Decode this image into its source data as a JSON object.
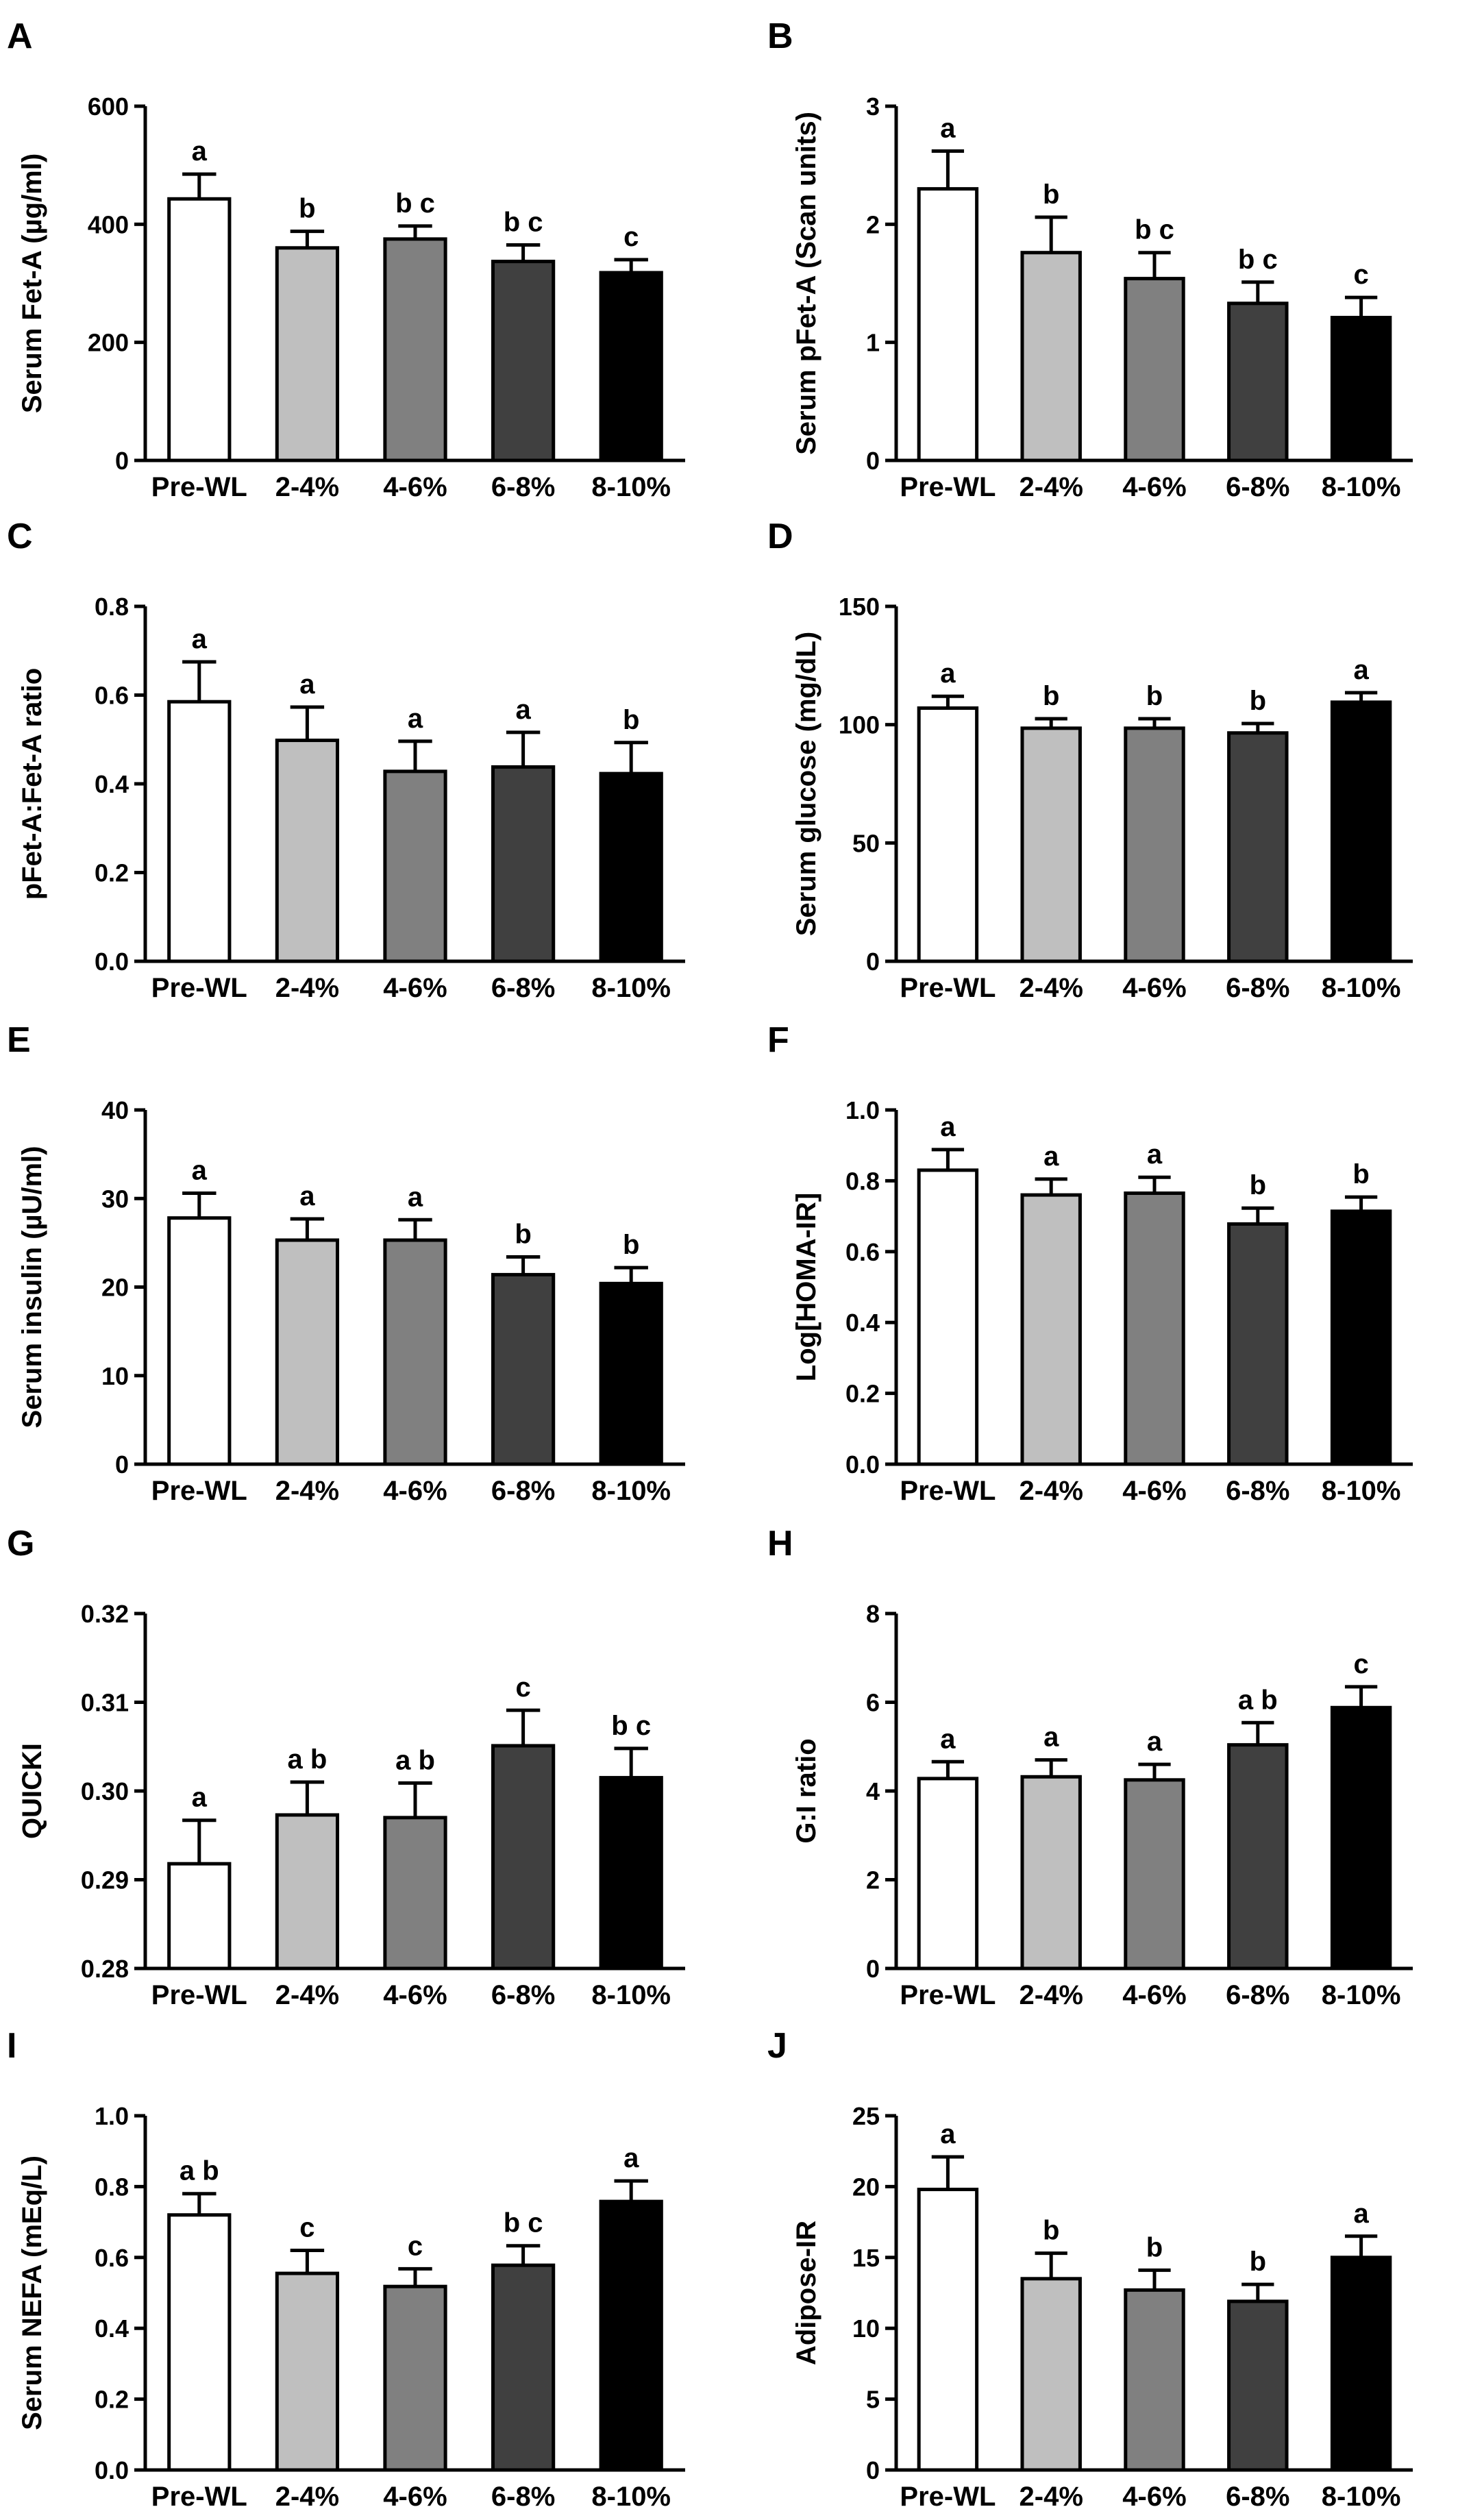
{
  "chart_data": [
    {
      "type": "bar",
      "letter": "A",
      "ylabel": "Serum Fet-A (µg/ml)",
      "categories": [
        "Pre-WL",
        "2-4%",
        "4-6%",
        "6-8%",
        "8-10%"
      ],
      "values": [
        443,
        360,
        375,
        337,
        318
      ],
      "errors": [
        42,
        28,
        22,
        28,
        22
      ],
      "sig_labels": [
        "a",
        "b",
        "b c",
        "b c",
        "c"
      ],
      "ylim": [
        0,
        600
      ],
      "yticks": [
        0,
        200,
        400,
        600
      ],
      "yticklabels": [
        "0",
        "200",
        "400",
        "600"
      ],
      "bar_colors": [
        "#ffffff",
        "#bfbfbf",
        "#808080",
        "#404040",
        "#000000"
      ],
      "grid": false
    },
    {
      "type": "bar",
      "letter": "B",
      "ylabel": "Serum pFet-A (Scan units)",
      "categories": [
        "Pre-WL",
        "2-4%",
        "4-6%",
        "6-8%",
        "8-10%"
      ],
      "values": [
        2.3,
        1.76,
        1.54,
        1.33,
        1.21
      ],
      "errors": [
        0.32,
        0.3,
        0.22,
        0.18,
        0.17
      ],
      "sig_labels": [
        "a",
        "b",
        "b c",
        "b c",
        "c"
      ],
      "ylim": [
        0,
        3
      ],
      "yticks": [
        0,
        1,
        2,
        3
      ],
      "yticklabels": [
        "0",
        "1",
        "2",
        "3"
      ],
      "bar_colors": [
        "#ffffff",
        "#bfbfbf",
        "#808080",
        "#404040",
        "#000000"
      ],
      "grid": false
    },
    {
      "type": "bar",
      "letter": "C",
      "ylabel": "pFet-A:Fet-A ratio",
      "categories": [
        "Pre-WL",
        "2-4%",
        "4-6%",
        "6-8%",
        "8-10%"
      ],
      "values": [
        0.585,
        0.498,
        0.428,
        0.438,
        0.423
      ],
      "errors": [
        0.09,
        0.075,
        0.068,
        0.078,
        0.07
      ],
      "sig_labels": [
        "a",
        "a",
        "a",
        "a",
        "b"
      ],
      "ylim": [
        0,
        0.8
      ],
      "yticks": [
        0,
        0.2,
        0.4,
        0.6,
        0.8
      ],
      "yticklabels": [
        "0.0",
        "0.2",
        "0.4",
        "0.6",
        "0.8"
      ],
      "bar_colors": [
        "#ffffff",
        "#bfbfbf",
        "#808080",
        "#404040",
        "#000000"
      ],
      "grid": false
    },
    {
      "type": "bar",
      "letter": "D",
      "ylabel": "Serum glucose (mg/dL)",
      "categories": [
        "Pre-WL",
        "2-4%",
        "4-6%",
        "6-8%",
        "8-10%"
      ],
      "values": [
        107,
        98.5,
        98.5,
        96.5,
        109.5
      ],
      "errors": [
        5,
        4,
        4,
        4,
        4
      ],
      "sig_labels": [
        "a",
        "b",
        "b",
        "b",
        "a"
      ],
      "ylim": [
        0,
        150
      ],
      "yticks": [
        0,
        50,
        100,
        150
      ],
      "yticklabels": [
        "0",
        "50",
        "100",
        "150"
      ],
      "bar_colors": [
        "#ffffff",
        "#bfbfbf",
        "#808080",
        "#404040",
        "#000000"
      ],
      "grid": false
    },
    {
      "type": "bar",
      "letter": "E",
      "ylabel": "Serum insulin (µU/ml)",
      "categories": [
        "Pre-WL",
        "2-4%",
        "4-6%",
        "6-8%",
        "8-10%"
      ],
      "values": [
        27.8,
        25.3,
        25.3,
        21.4,
        20.4
      ],
      "errors": [
        2.8,
        2.4,
        2.3,
        2.0,
        1.8
      ],
      "sig_labels": [
        "a",
        "a",
        "a",
        "b",
        "b"
      ],
      "ylim": [
        0,
        40
      ],
      "yticks": [
        0,
        10,
        20,
        30,
        40
      ],
      "yticklabels": [
        "0",
        "10",
        "20",
        "30",
        "40"
      ],
      "bar_colors": [
        "#ffffff",
        "#bfbfbf",
        "#808080",
        "#404040",
        "#000000"
      ],
      "grid": false
    },
    {
      "type": "bar",
      "letter": "F",
      "ylabel": "Log[HOMA-IR]",
      "categories": [
        "Pre-WL",
        "2-4%",
        "4-6%",
        "6-8%",
        "8-10%"
      ],
      "values": [
        0.83,
        0.76,
        0.765,
        0.678,
        0.714
      ],
      "errors": [
        0.058,
        0.045,
        0.045,
        0.045,
        0.04
      ],
      "sig_labels": [
        "a",
        "a",
        "a",
        "b",
        "b"
      ],
      "ylim": [
        0,
        1
      ],
      "yticks": [
        0,
        0.2,
        0.4,
        0.6,
        0.8,
        1.0
      ],
      "yticklabels": [
        "0.0",
        "0.2",
        "0.4",
        "0.6",
        "0.8",
        "1.0"
      ],
      "bar_colors": [
        "#ffffff",
        "#bfbfbf",
        "#808080",
        "#404040",
        "#000000"
      ],
      "grid": false
    },
    {
      "type": "bar",
      "letter": "G",
      "ylabel": "QUICKI",
      "categories": [
        "Pre-WL",
        "2-4%",
        "4-6%",
        "6-8%",
        "8-10%"
      ],
      "values": [
        0.2918,
        0.2973,
        0.297,
        0.3051,
        0.3015
      ],
      "errors": [
        0.0049,
        0.0037,
        0.0039,
        0.004,
        0.0033
      ],
      "sig_labels": [
        "a",
        "a b",
        "a b",
        "c",
        "b c"
      ],
      "ylim": [
        0.28,
        0.32
      ],
      "yticks": [
        0.28,
        0.29,
        0.3,
        0.31,
        0.32
      ],
      "yticklabels": [
        "0.28",
        "0.29",
        "0.30",
        "0.31",
        "0.32"
      ],
      "bar_colors": [
        "#ffffff",
        "#bfbfbf",
        "#808080",
        "#404040",
        "#000000"
      ],
      "grid": false
    },
    {
      "type": "bar",
      "letter": "H",
      "ylabel": "G:I ratio",
      "categories": [
        "Pre-WL",
        "2-4%",
        "4-6%",
        "6-8%",
        "8-10%"
      ],
      "values": [
        4.28,
        4.32,
        4.25,
        5.04,
        5.88
      ],
      "errors": [
        0.38,
        0.38,
        0.35,
        0.5,
        0.47
      ],
      "sig_labels": [
        "a",
        "a",
        "a",
        "a b",
        "c"
      ],
      "ylim": [
        0,
        8
      ],
      "yticks": [
        0,
        2,
        4,
        6,
        8
      ],
      "yticklabels": [
        "0",
        "2",
        "4",
        "6",
        "8"
      ],
      "bar_colors": [
        "#ffffff",
        "#bfbfbf",
        "#808080",
        "#404040",
        "#000000"
      ],
      "grid": false
    },
    {
      "type": "bar",
      "letter": "I",
      "ylabel": "Serum NEFA (mEq/L)",
      "categories": [
        "Pre-WL",
        "2-4%",
        "4-6%",
        "6-8%",
        "8-10%"
      ],
      "values": [
        0.72,
        0.555,
        0.518,
        0.578,
        0.758
      ],
      "errors": [
        0.06,
        0.065,
        0.05,
        0.055,
        0.058
      ],
      "sig_labels": [
        "a b",
        "c",
        "c",
        "b c",
        "a"
      ],
      "ylim": [
        0,
        1
      ],
      "yticks": [
        0,
        0.2,
        0.4,
        0.6,
        0.8,
        1.0
      ],
      "yticklabels": [
        "0.0",
        "0.2",
        "0.4",
        "0.6",
        "0.8",
        "1.0"
      ],
      "bar_colors": [
        "#ffffff",
        "#bfbfbf",
        "#808080",
        "#404040",
        "#000000"
      ],
      "grid": false
    },
    {
      "type": "bar",
      "letter": "J",
      "ylabel": "Adipose-IR",
      "categories": [
        "Pre-WL",
        "2-4%",
        "4-6%",
        "6-8%",
        "8-10%"
      ],
      "values": [
        19.8,
        13.5,
        12.7,
        11.9,
        15.0
      ],
      "errors": [
        2.3,
        1.8,
        1.4,
        1.2,
        1.5
      ],
      "sig_labels": [
        "a",
        "b",
        "b",
        "b",
        "a"
      ],
      "ylim": [
        0,
        25
      ],
      "yticks": [
        0,
        5,
        10,
        15,
        20,
        25
      ],
      "yticklabels": [
        "0",
        "5",
        "10",
        "15",
        "20",
        "25"
      ],
      "bar_colors": [
        "#ffffff",
        "#bfbfbf",
        "#808080",
        "#404040",
        "#000000"
      ],
      "grid": false
    }
  ]
}
